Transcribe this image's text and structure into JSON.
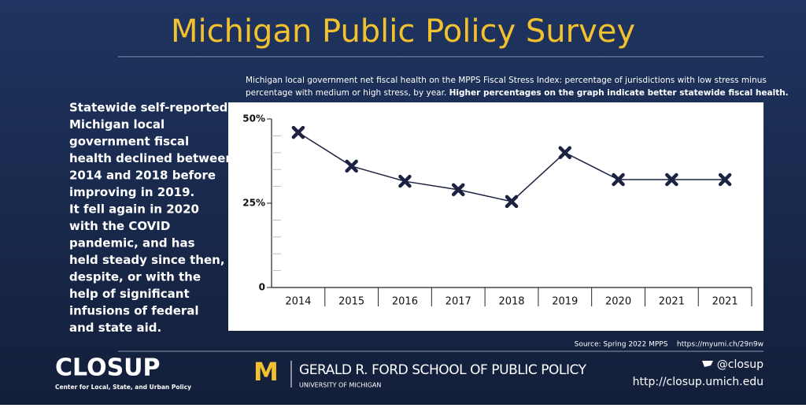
{
  "header": {
    "title": "Michigan Public Policy Survey"
  },
  "description": {
    "lines": [
      "Statewide self-reported",
      "Michigan local",
      "government fiscal",
      "health declined between",
      "2014 and 2018 before",
      "improving in 2019.",
      "It fell again in 2020",
      "with the COVID",
      "pandemic, and has",
      "held steady since then,",
      "despite, or with the",
      "help of significant",
      "infusions of federal",
      "and state aid."
    ]
  },
  "chart_data": {
    "type": "line",
    "caption": [
      "Michigan local government net fiscal health on the MPPS Fiscal Stress Index: percentage of jurisdictions with low stress minus",
      "percentage with medium or high stress, by year."
    ],
    "caption_emphasis": "Higher percentages on the graph indicate better statewide fiscal health.",
    "categories": [
      "2014",
      "2015",
      "2016",
      "2017",
      "2018",
      "2019",
      "2020",
      "2021",
      "2021"
    ],
    "values": [
      46,
      36,
      31.5,
      29,
      25.5,
      40,
      32,
      32,
      32
    ],
    "color": "#1c2340",
    "ylim": [
      0,
      50
    ],
    "yticks": [
      0,
      {
        "value": 25,
        "label": "25%"
      },
      {
        "value": 50,
        "label": "50%"
      }
    ],
    "minor_yticks": [
      5,
      10,
      15,
      20,
      30,
      35,
      40,
      45
    ],
    "source": "Source: Spring 2022 MPPS    https://myumi.ch/29n9w"
  },
  "footer": {
    "closup": "CLOSUP",
    "closup_subtitle": "Center for Local, State, and Urban Policy",
    "m_logo": "M",
    "ford_school": "GERALD R. FORD SCHOOL OF PUBLIC POLICY",
    "university": "UNIVERSITY OF MICHIGAN",
    "twitter": "@closup",
    "url": "http://closup.umich.edu"
  }
}
